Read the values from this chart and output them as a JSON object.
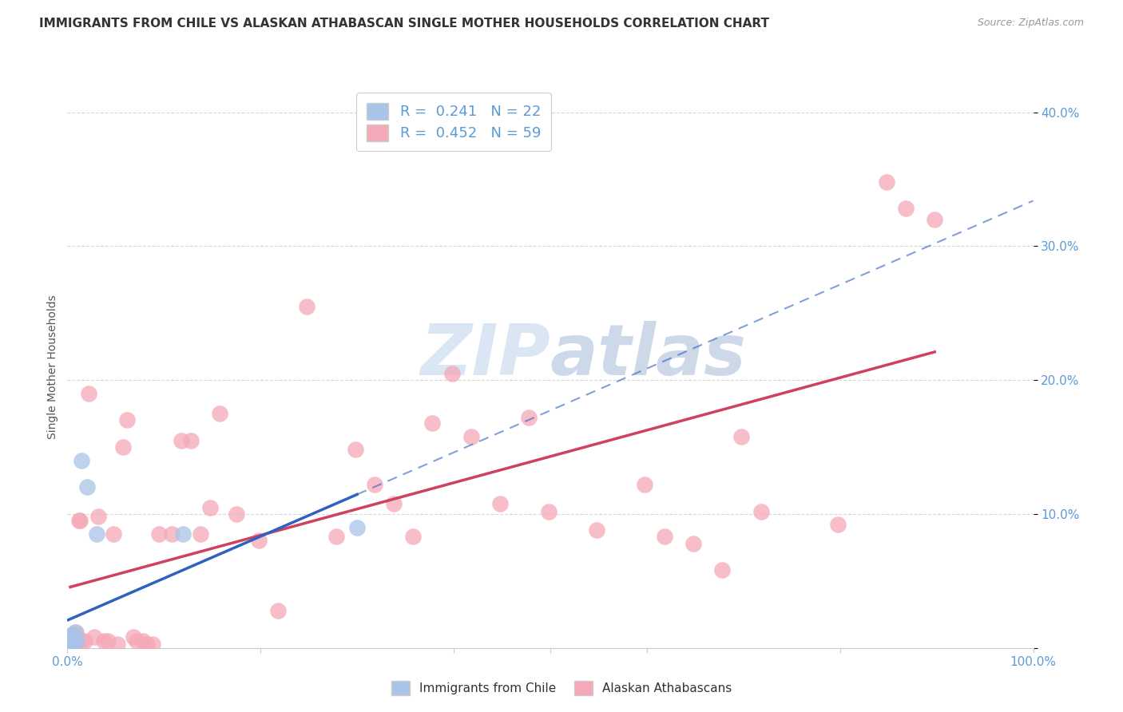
{
  "title": "IMMIGRANTS FROM CHILE VS ALASKAN ATHABASCAN SINGLE MOTHER HOUSEHOLDS CORRELATION CHART",
  "source": "Source: ZipAtlas.com",
  "ylabel": "Single Mother Households",
  "xlim": [
    0.0,
    1.0
  ],
  "ylim": [
    0.0,
    0.42
  ],
  "ytick_positions": [
    0.0,
    0.1,
    0.2,
    0.3,
    0.4
  ],
  "ytick_labels": [
    "",
    "10.0%",
    "20.0%",
    "30.0%",
    "40.0%"
  ],
  "r_blue": 0.241,
  "n_blue": 22,
  "r_pink": 0.452,
  "n_pink": 59,
  "blue_color": "#a8c4e8",
  "pink_color": "#f5a8b8",
  "trendline_blue_color": "#3060c0",
  "trendline_pink_color": "#d04060",
  "background_color": "#ffffff",
  "grid_color": "#d8d8d8",
  "axis_label_color": "#5b9bd5",
  "scatter_blue": [
    [
      0.001,
      0.003
    ],
    [
      0.001,
      0.005
    ],
    [
      0.001,
      0.007
    ],
    [
      0.002,
      0.004
    ],
    [
      0.002,
      0.006
    ],
    [
      0.002,
      0.008
    ],
    [
      0.003,
      0.005
    ],
    [
      0.003,
      0.007
    ],
    [
      0.003,
      0.009
    ],
    [
      0.004,
      0.004
    ],
    [
      0.004,
      0.006
    ],
    [
      0.005,
      0.008
    ],
    [
      0.005,
      0.01
    ],
    [
      0.006,
      0.003
    ],
    [
      0.007,
      0.005
    ],
    [
      0.008,
      0.012
    ],
    [
      0.01,
      0.005
    ],
    [
      0.015,
      0.14
    ],
    [
      0.02,
      0.12
    ],
    [
      0.03,
      0.085
    ],
    [
      0.12,
      0.085
    ],
    [
      0.3,
      0.09
    ]
  ],
  "scatter_pink": [
    [
      0.003,
      0.005
    ],
    [
      0.004,
      0.008
    ],
    [
      0.005,
      0.003
    ],
    [
      0.006,
      0.01
    ],
    [
      0.007,
      0.005
    ],
    [
      0.008,
      0.008
    ],
    [
      0.009,
      0.012
    ],
    [
      0.01,
      0.008
    ],
    [
      0.012,
      0.095
    ],
    [
      0.013,
      0.095
    ],
    [
      0.015,
      0.005
    ],
    [
      0.018,
      0.005
    ],
    [
      0.022,
      0.19
    ],
    [
      0.028,
      0.008
    ],
    [
      0.032,
      0.098
    ],
    [
      0.038,
      0.005
    ],
    [
      0.042,
      0.005
    ],
    [
      0.048,
      0.085
    ],
    [
      0.052,
      0.003
    ],
    [
      0.058,
      0.15
    ],
    [
      0.062,
      0.17
    ],
    [
      0.068,
      0.008
    ],
    [
      0.072,
      0.005
    ],
    [
      0.078,
      0.005
    ],
    [
      0.082,
      0.003
    ],
    [
      0.088,
      0.003
    ],
    [
      0.095,
      0.085
    ],
    [
      0.108,
      0.085
    ],
    [
      0.118,
      0.155
    ],
    [
      0.128,
      0.155
    ],
    [
      0.138,
      0.085
    ],
    [
      0.148,
      0.105
    ],
    [
      0.158,
      0.175
    ],
    [
      0.175,
      0.1
    ],
    [
      0.198,
      0.08
    ],
    [
      0.218,
      0.028
    ],
    [
      0.248,
      0.255
    ],
    [
      0.278,
      0.083
    ],
    [
      0.298,
      0.148
    ],
    [
      0.318,
      0.122
    ],
    [
      0.338,
      0.108
    ],
    [
      0.358,
      0.083
    ],
    [
      0.378,
      0.168
    ],
    [
      0.398,
      0.205
    ],
    [
      0.418,
      0.158
    ],
    [
      0.448,
      0.108
    ],
    [
      0.478,
      0.172
    ],
    [
      0.498,
      0.102
    ],
    [
      0.548,
      0.088
    ],
    [
      0.598,
      0.122
    ],
    [
      0.618,
      0.083
    ],
    [
      0.648,
      0.078
    ],
    [
      0.678,
      0.058
    ],
    [
      0.698,
      0.158
    ],
    [
      0.718,
      0.102
    ],
    [
      0.798,
      0.092
    ],
    [
      0.848,
      0.348
    ],
    [
      0.868,
      0.328
    ],
    [
      0.898,
      0.32
    ]
  ]
}
